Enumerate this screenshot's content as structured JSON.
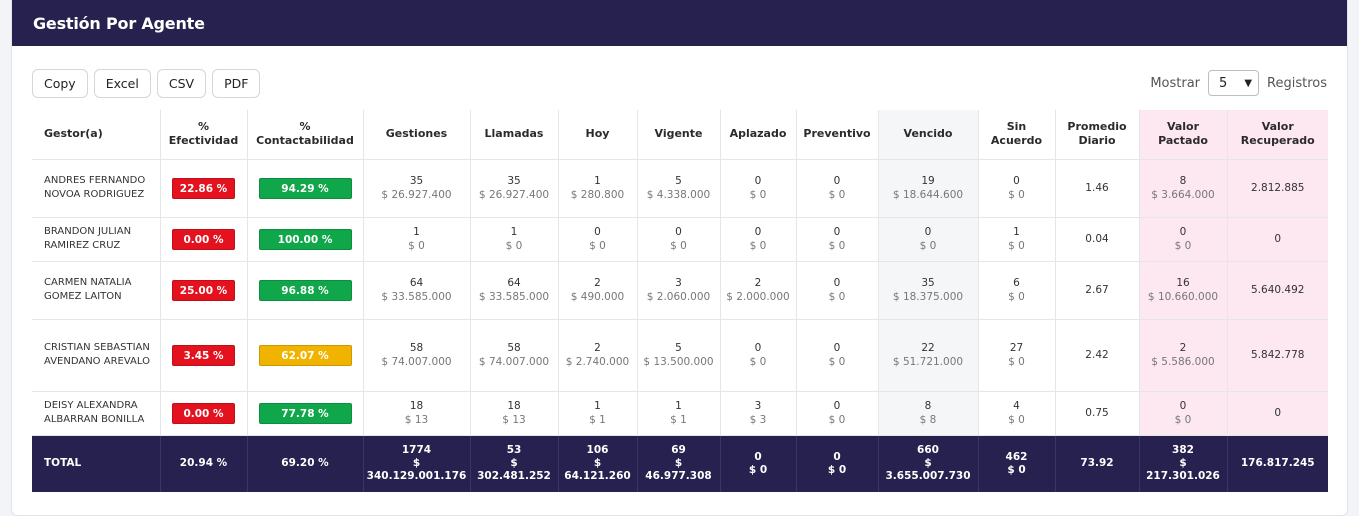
{
  "header": {
    "title": "Gestión Por Agente"
  },
  "toolbar": {
    "buttons": [
      "Copy",
      "Excel",
      "CSV",
      "PDF"
    ],
    "show_label": "Mostrar",
    "show_value": "5",
    "records_label": "Registros"
  },
  "columns": [
    "Gestor(a)",
    "% Efectividad",
    "% Contactabilidad",
    "Gestiones",
    "Llamadas",
    "Hoy",
    "Vigente",
    "Aplazado",
    "Preventivo",
    "Vencido",
    "Sin Acuerdo",
    "Promedio Diario",
    "Valor Pactado",
    "Valor Recuperado"
  ],
  "colors": {
    "header_bg": "#26214e",
    "red": "#e3121e",
    "green": "#10a64a",
    "yellow": "#f0b400",
    "pink": "#fde7f0"
  },
  "rows": [
    {
      "name": "ANDRES FERNANDO NOVOA RODRIGUEZ",
      "efectividad": "22.86 %",
      "efectividad_color": "red",
      "contactabilidad": "94.29 %",
      "contactabilidad_color": "green",
      "gestiones": [
        "35",
        "$ 26.927.400"
      ],
      "llamadas": [
        "35",
        "$ 26.927.400"
      ],
      "hoy": [
        "1",
        "$ 280.800"
      ],
      "vigente": [
        "5",
        "$ 4.338.000"
      ],
      "aplazado": [
        "0",
        "$ 0"
      ],
      "preventivo": [
        "0",
        "$ 0"
      ],
      "vencido": [
        "19",
        "$ 18.644.600"
      ],
      "sin_acuerdo": [
        "0",
        "$ 0"
      ],
      "promedio": "1.46",
      "pactado": [
        "8",
        "$ 3.664.000"
      ],
      "recuperado": "2.812.885"
    },
    {
      "name": "BRANDON JULIAN RAMIREZ CRUZ",
      "efectividad": "0.00 %",
      "efectividad_color": "red",
      "contactabilidad": "100.00 %",
      "contactabilidad_color": "green",
      "gestiones": [
        "1",
        "$ 0"
      ],
      "llamadas": [
        "1",
        "$ 0"
      ],
      "hoy": [
        "0",
        "$ 0"
      ],
      "vigente": [
        "0",
        "$ 0"
      ],
      "aplazado": [
        "0",
        "$ 0"
      ],
      "preventivo": [
        "0",
        "$ 0"
      ],
      "vencido": [
        "0",
        "$ 0"
      ],
      "sin_acuerdo": [
        "1",
        "$ 0"
      ],
      "promedio": "0.04",
      "pactado": [
        "0",
        "$ 0"
      ],
      "recuperado": "0"
    },
    {
      "name": "CARMEN NATALIA GOMEZ LAITON",
      "efectividad": "25.00 %",
      "efectividad_color": "red",
      "contactabilidad": "96.88 %",
      "contactabilidad_color": "green",
      "gestiones": [
        "64",
        "$ 33.585.000"
      ],
      "llamadas": [
        "64",
        "$ 33.585.000"
      ],
      "hoy": [
        "2",
        "$ 490.000"
      ],
      "vigente": [
        "3",
        "$ 2.060.000"
      ],
      "aplazado": [
        "2",
        "$ 2.000.000"
      ],
      "preventivo": [
        "0",
        "$ 0"
      ],
      "vencido": [
        "35",
        "$ 18.375.000"
      ],
      "sin_acuerdo": [
        "6",
        "$ 0"
      ],
      "promedio": "2.67",
      "pactado": [
        "16",
        "$ 10.660.000"
      ],
      "recuperado": "5.640.492"
    },
    {
      "name": "CRISTIAN SEBASTIAN AVENDANO AREVALO",
      "efectividad": "3.45 %",
      "efectividad_color": "red",
      "contactabilidad": "62.07 %",
      "contactabilidad_color": "yellow",
      "gestiones": [
        "58",
        "$ 74.007.000"
      ],
      "llamadas": [
        "58",
        "$ 74.007.000"
      ],
      "hoy": [
        "2",
        "$ 2.740.000"
      ],
      "vigente": [
        "5",
        "$ 13.500.000"
      ],
      "aplazado": [
        "0",
        "$ 0"
      ],
      "preventivo": [
        "0",
        "$ 0"
      ],
      "vencido": [
        "22",
        "$ 51.721.000"
      ],
      "sin_acuerdo": [
        "27",
        "$ 0"
      ],
      "promedio": "2.42",
      "pactado": [
        "2",
        "$ 5.586.000"
      ],
      "recuperado": "5.842.778"
    },
    {
      "name": "DEISY ALEXANDRA ALBARRAN BONILLA",
      "efectividad": "0.00 %",
      "efectividad_color": "red",
      "contactabilidad": "77.78 %",
      "contactabilidad_color": "green",
      "gestiones": [
        "18",
        "$ 13"
      ],
      "llamadas": [
        "18",
        "$ 13"
      ],
      "hoy": [
        "1",
        "$ 1"
      ],
      "vigente": [
        "1",
        "$ 1"
      ],
      "aplazado": [
        "3",
        "$ 3"
      ],
      "preventivo": [
        "0",
        "$ 0"
      ],
      "vencido": [
        "8",
        "$ 8"
      ],
      "sin_acuerdo": [
        "4",
        "$ 0"
      ],
      "promedio": "0.75",
      "pactado": [
        "0",
        "$ 0"
      ],
      "recuperado": "0"
    }
  ],
  "total": {
    "label": "TOTAL",
    "efectividad": "20.94 %",
    "contactabilidad": "69.20 %",
    "gestiones": [
      "1774",
      "$",
      "340.129.001.176"
    ],
    "llamadas": [
      "53",
      "$",
      "302.481.252"
    ],
    "hoy": [
      "106",
      "$",
      "64.121.260"
    ],
    "vigente": [
      "69",
      "$",
      "46.977.308"
    ],
    "aplazado": [
      "0",
      "$ 0"
    ],
    "preventivo": [
      "0",
      "$ 0"
    ],
    "vencido": [
      "660",
      "$",
      "3.655.007.730"
    ],
    "sin_acuerdo": [
      "462",
      "$ 0"
    ],
    "promedio": "73.92",
    "pactado": [
      "382",
      "$",
      "217.301.026"
    ],
    "recuperado": "176.817.245"
  }
}
